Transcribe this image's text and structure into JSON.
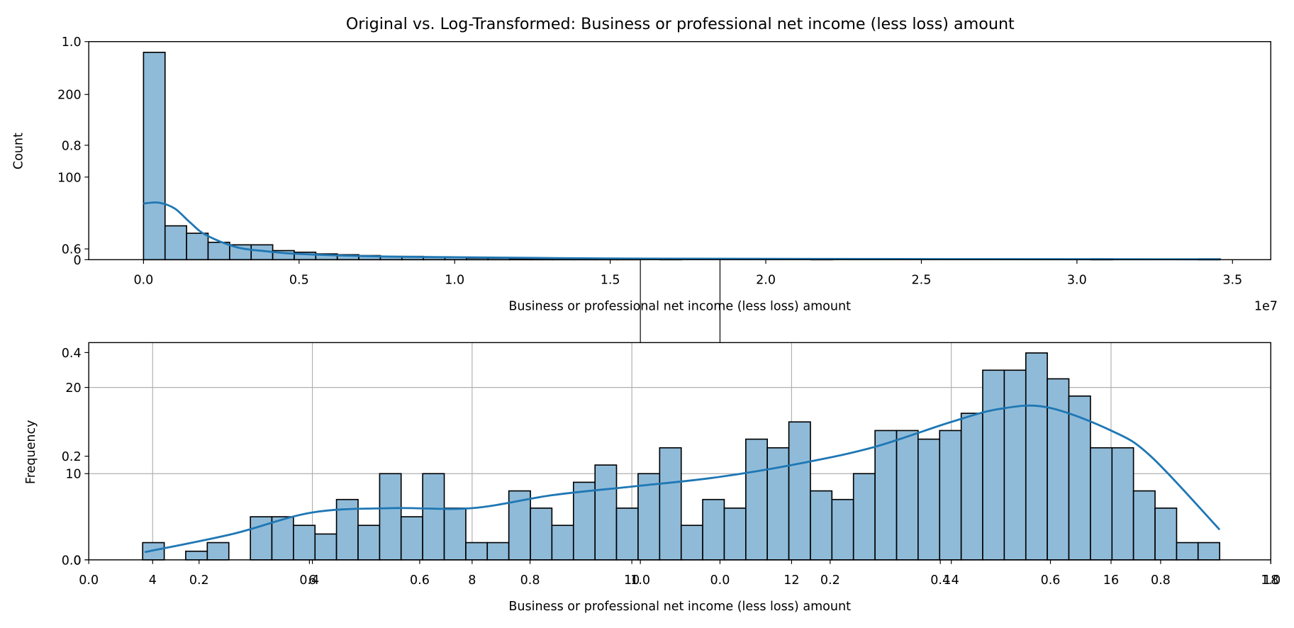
{
  "chart_data": [
    {
      "type": "histogram",
      "title": "Original vs. Log-Transformed: Business or professional net income (less loss) amount",
      "xlabel": "Business or professional net income (less loss) amount",
      "ylabel": "Count",
      "x_offset_label": "1e7",
      "color": "#8fbbd9",
      "line_color": "#1f77b4",
      "grid": false,
      "bins": [
        0,
        692000,
        1384000,
        2076000,
        2768000,
        3460000,
        4152000,
        4844000,
        5536000,
        6228000,
        6920000,
        7612000,
        8304000,
        8996000,
        9688000,
        10380000,
        11072000,
        11764000,
        12456000,
        13148000,
        13840000,
        14532000,
        15224000,
        15916000,
        16608000,
        17300000,
        17992000,
        18684000,
        19376000,
        20068000,
        20760000,
        21452000,
        22144000,
        22836000,
        23528000,
        24220000,
        24912000,
        25604000,
        26296000,
        26988000,
        27680000,
        28372000,
        29064000,
        29756000,
        30448000,
        31140000,
        31832000,
        32524000,
        33216000,
        33908000,
        34600000
      ],
      "values": [
        251,
        41,
        32,
        21,
        18,
        18,
        11,
        9,
        7,
        6,
        5,
        4,
        4,
        3,
        3,
        2,
        2,
        1,
        1,
        1,
        1,
        1,
        1,
        0,
        1,
        0,
        0,
        0,
        0,
        0,
        0,
        1,
        0,
        0,
        0,
        0,
        0,
        0,
        0,
        0,
        0,
        0,
        0,
        0,
        1,
        0,
        0,
        0,
        0,
        1
      ],
      "kde": {
        "x": [
          0,
          500000,
          1000000,
          1500000,
          2000000,
          3000000,
          4000000,
          5000000,
          7500000,
          10000000,
          15000000,
          20000000,
          27000000,
          34600000
        ],
        "y": [
          68,
          69,
          62,
          45,
          30,
          15,
          10,
          7,
          4,
          3,
          1.5,
          1,
          0.7,
          0.5
        ]
      },
      "xlim": [
        -1760000,
        36230000
      ],
      "ylim": [
        0,
        264
      ],
      "yticks": [
        0,
        100,
        200
      ],
      "xticks": [
        {
          "value": 0,
          "label": "0.0"
        },
        {
          "value": 5000000,
          "label": "0.5"
        },
        {
          "value": 10000000,
          "label": "1.0"
        },
        {
          "value": 15000000,
          "label": "1.5"
        },
        {
          "value": 20000000,
          "label": "2.0"
        },
        {
          "value": 25000000,
          "label": "2.5"
        },
        {
          "value": 30000000,
          "label": "3.0"
        },
        {
          "value": 35000000,
          "label": "3.5"
        }
      ]
    },
    {
      "type": "histogram",
      "xlabel": "Business or professional net income (less loss) amount",
      "ylabel": "Frequency",
      "color": "#8fbbd9",
      "line_color": "#1f77b4",
      "grid": true,
      "bins": [
        3.875,
        4.145,
        4.414,
        4.684,
        4.954,
        5.224,
        5.493,
        5.763,
        6.033,
        6.302,
        6.572,
        6.842,
        7.111,
        7.381,
        7.651,
        7.921,
        8.19,
        8.46,
        8.73,
        8.999,
        9.269,
        9.539,
        9.808,
        10.078,
        10.348,
        10.618,
        10.887,
        11.157,
        11.427,
        11.696,
        11.966,
        12.236,
        12.505,
        12.775,
        13.045,
        13.315,
        13.584,
        13.854,
        14.124,
        14.393,
        14.663,
        14.933,
        15.202,
        15.472,
        15.742,
        16.012,
        16.281,
        16.551,
        16.821,
        17.09,
        17.36
      ],
      "values": [
        2,
        0,
        1,
        2,
        0,
        5,
        5,
        4,
        3,
        7,
        4,
        10,
        5,
        10,
        6,
        2,
        2,
        8,
        6,
        4,
        9,
        11,
        6,
        10,
        13,
        4,
        7,
        6,
        14,
        13,
        16,
        8,
        7,
        10,
        15,
        15,
        14,
        15,
        17,
        22,
        22,
        24,
        21,
        19,
        13,
        13,
        8,
        6,
        2,
        2
      ],
      "kde": {
        "x": [
          3.9,
          5,
          6,
          7,
          8,
          9,
          10,
          11,
          12,
          13,
          14,
          14.6,
          15.2,
          16,
          16.5,
          17.36
        ],
        "y": [
          0.9,
          3,
          5.5,
          6,
          6,
          7.5,
          8.5,
          9.5,
          11,
          13,
          16,
          17.5,
          17.7,
          15,
          12,
          3.5
        ]
      },
      "xlim": [
        3.2,
        18
      ],
      "ylim": [
        0,
        25.2
      ],
      "yticks": [
        0,
        10,
        20
      ],
      "xticks": [
        4,
        6,
        8,
        10,
        12,
        14,
        16,
        18
      ]
    },
    {
      "type": "empty",
      "xlim": [
        0,
        1
      ],
      "ylim": [
        0,
        1
      ],
      "xticks": [
        {
          "value": 0,
          "label": "0.0"
        },
        {
          "value": 0.2,
          "label": "0.2"
        },
        {
          "value": 0.4,
          "label": "0.4"
        },
        {
          "value": 0.6,
          "label": "0.6"
        },
        {
          "value": 0.8,
          "label": "0.8"
        },
        {
          "value": 1,
          "label": "1.0"
        }
      ],
      "yticks": [
        {
          "value": 0,
          "label": "0.0"
        },
        {
          "value": 0.2,
          "label": "0.2"
        },
        {
          "value": 0.4,
          "label": "0.4"
        },
        {
          "value": 0.6,
          "label": "0.6"
        },
        {
          "value": 0.8,
          "label": "0.8"
        },
        {
          "value": 1,
          "label": "1.0"
        }
      ]
    },
    {
      "type": "empty",
      "xlim": [
        0,
        1
      ],
      "xticks": [
        {
          "value": 0,
          "label": "0.0"
        },
        {
          "value": 0.2,
          "label": "0.2"
        },
        {
          "value": 0.4,
          "label": "0.4"
        },
        {
          "value": 0.6,
          "label": "0.6"
        },
        {
          "value": 0.8,
          "label": "0.8"
        },
        {
          "value": 1,
          "label": "1.0"
        }
      ]
    }
  ]
}
